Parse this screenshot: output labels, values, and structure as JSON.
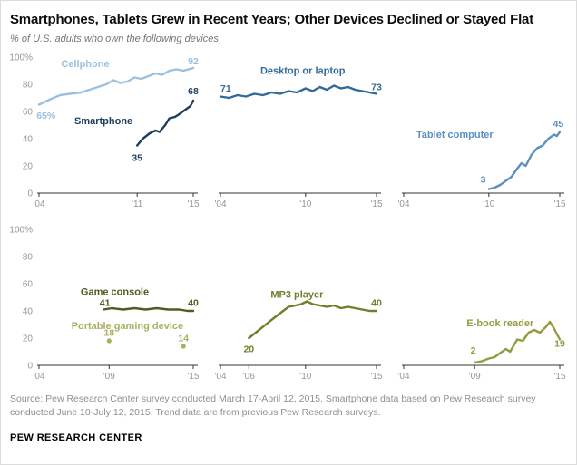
{
  "header": {
    "title": "Smartphones, Tablets Grew in Recent Years; Other Devices Declined or Stayed Flat",
    "subtitle": "% of U.S. adults who own the following devices"
  },
  "footer": {
    "source": "Source:  Pew Research Center survey conducted March 17-April 12, 2015. Smartphone data based on Pew Research survey conducted June 10-July 12, 2015. Trend data are from previous Pew Research surveys.",
    "brand": "PEW RESEARCH CENTER"
  },
  "chart_data": {
    "type": "line",
    "title": "Smartphones, Tablets Grew in Recent Years; Other Devices Declined or Stayed Flat",
    "subtitle": "% of U.S. adults who own the following devices",
    "x_range": [
      2004,
      2015
    ],
    "y_range": [
      0,
      100
    ],
    "y_ticks": [
      100,
      80,
      60,
      40,
      20,
      0
    ],
    "y_tick_labels": [
      "100%",
      "80",
      "60",
      "40",
      "20",
      "0"
    ],
    "axis_color": "#333333",
    "tick_color": "#969696",
    "grid": false,
    "panels": [
      {
        "id": "cellphone-smartphone",
        "show_y_axis": true,
        "x_ticks": [
          {
            "year": 2004,
            "label": "'04"
          },
          {
            "year": 2011,
            "label": "'11"
          },
          {
            "year": 2015,
            "label": "'15"
          }
        ],
        "series": [
          {
            "id": "cellphone",
            "name": "Cellphone",
            "type": "line",
            "color": "#9bc1e0",
            "points": [
              [
                2004,
                65
              ],
              [
                2004.8,
                69
              ],
              [
                2005.5,
                72
              ],
              [
                2006.2,
                73
              ],
              [
                2007,
                74
              ],
              [
                2007.6,
                76
              ],
              [
                2008.2,
                78
              ],
              [
                2008.8,
                80
              ],
              [
                2009.3,
                83
              ],
              [
                2009.8,
                81
              ],
              [
                2010.3,
                82
              ],
              [
                2010.8,
                85
              ],
              [
                2011.3,
                84
              ],
              [
                2011.8,
                86
              ],
              [
                2012.3,
                88
              ],
              [
                2012.8,
                87
              ],
              [
                2013.3,
                90
              ],
              [
                2013.8,
                91
              ],
              [
                2014.3,
                90
              ],
              [
                2015,
                92
              ]
            ]
          },
          {
            "id": "smartphone",
            "name": "Smartphone",
            "type": "line",
            "color": "#1f3e5d",
            "points": [
              [
                2011,
                35
              ],
              [
                2011.4,
                40
              ],
              [
                2011.9,
                44
              ],
              [
                2012.3,
                46
              ],
              [
                2012.6,
                45
              ],
              [
                2013,
                50
              ],
              [
                2013.3,
                55
              ],
              [
                2013.7,
                56
              ],
              [
                2014,
                58
              ],
              [
                2014.4,
                61
              ],
              [
                2014.8,
                64
              ],
              [
                2015,
                68
              ]
            ]
          }
        ],
        "labels": [
          {
            "text": "Cellphone",
            "year": 2007.3,
            "value": 95,
            "color": "#9bc1e0",
            "size": 11
          },
          {
            "text": "65%",
            "year": 2004.5,
            "value": 57,
            "color": "#9bc1e0"
          },
          {
            "text": "92",
            "year": 2015,
            "value": 97,
            "color": "#9bc1e0"
          },
          {
            "text": "Smartphone",
            "year": 2008.6,
            "value": 53,
            "color": "#1f3e5d",
            "size": 11
          },
          {
            "text": "35",
            "year": 2011,
            "value": 26,
            "color": "#1f3e5d"
          },
          {
            "text": "68",
            "year": 2015,
            "value": 75,
            "color": "#1f3e5d"
          }
        ]
      },
      {
        "id": "desktop-laptop",
        "show_y_axis": false,
        "x_ticks": [
          {
            "year": 2004,
            "label": "'04"
          },
          {
            "year": 2010,
            "label": "'10"
          },
          {
            "year": 2015,
            "label": "'15"
          }
        ],
        "series": [
          {
            "id": "desktop-or-laptop",
            "name": "Desktop or laptop",
            "type": "line",
            "color": "#336a98",
            "points": [
              [
                2004,
                71
              ],
              [
                2004.6,
                70
              ],
              [
                2005.2,
                72
              ],
              [
                2005.8,
                71
              ],
              [
                2006.4,
                73
              ],
              [
                2007,
                72
              ],
              [
                2007.6,
                74
              ],
              [
                2008.2,
                73
              ],
              [
                2008.8,
                75
              ],
              [
                2009.4,
                74
              ],
              [
                2010,
                77
              ],
              [
                2010.5,
                75
              ],
              [
                2011,
                78
              ],
              [
                2011.5,
                76
              ],
              [
                2012,
                79
              ],
              [
                2012.5,
                77
              ],
              [
                2013,
                78
              ],
              [
                2013.5,
                76
              ],
              [
                2014,
                75
              ],
              [
                2014.5,
                74
              ],
              [
                2015,
                73
              ]
            ]
          }
        ],
        "labels": [
          {
            "text": "Desktop or laptop",
            "year": 2009.8,
            "value": 90,
            "color": "#336a98",
            "size": 11
          },
          {
            "text": "71",
            "year": 2004,
            "value": 77,
            "color": "#336a98",
            "anchor": "start"
          },
          {
            "text": "73",
            "year": 2015,
            "value": 78,
            "color": "#336a98"
          }
        ]
      },
      {
        "id": "tablet",
        "show_y_axis": false,
        "x_ticks": [
          {
            "year": 2004,
            "label": "'04"
          },
          {
            "year": 2010,
            "label": "'10"
          },
          {
            "year": 2015,
            "label": "'15"
          }
        ],
        "series": [
          {
            "id": "tablet-computer",
            "name": "Tablet computer",
            "type": "line",
            "color": "#5b90c0",
            "points": [
              [
                2010,
                3
              ],
              [
                2010.4,
                4
              ],
              [
                2010.8,
                6
              ],
              [
                2011.2,
                9
              ],
              [
                2011.6,
                12
              ],
              [
                2012,
                18
              ],
              [
                2012.3,
                22
              ],
              [
                2012.6,
                20
              ],
              [
                2013,
                28
              ],
              [
                2013.4,
                33
              ],
              [
                2013.8,
                35
              ],
              [
                2014.2,
                40
              ],
              [
                2014.6,
                43
              ],
              [
                2014.8,
                42
              ],
              [
                2015,
                45
              ]
            ]
          }
        ],
        "labels": [
          {
            "text": "Tablet computer",
            "year": 2007.6,
            "value": 43,
            "color": "#5b90c0",
            "size": 11
          },
          {
            "text": "3",
            "year": 2009.6,
            "value": 10,
            "color": "#5b90c0"
          },
          {
            "text": "45",
            "year": 2014.9,
            "value": 51,
            "color": "#5b90c0"
          }
        ]
      },
      {
        "id": "gaming",
        "show_y_axis": true,
        "x_ticks": [
          {
            "year": 2004,
            "label": "'04"
          },
          {
            "year": 2009,
            "label": "'09"
          },
          {
            "year": 2015,
            "label": "'15"
          }
        ],
        "series": [
          {
            "id": "game-console",
            "name": "Game console",
            "type": "line",
            "color": "#545a21",
            "points": [
              [
                2008.6,
                41
              ],
              [
                2009.2,
                42
              ],
              [
                2010,
                41
              ],
              [
                2010.8,
                42
              ],
              [
                2011.6,
                41
              ],
              [
                2012.4,
                42
              ],
              [
                2013.2,
                41
              ],
              [
                2014,
                41
              ],
              [
                2014.6,
                40
              ],
              [
                2015,
                40
              ]
            ]
          },
          {
            "id": "portable-gaming-device",
            "name": "Portable gaming device",
            "type": "dots",
            "color": "#a9b05f",
            "points": [
              [
                2009,
                18
              ],
              [
                2014.3,
                14
              ]
            ]
          }
        ],
        "labels": [
          {
            "text": "Game console",
            "year": 2009.4,
            "value": 54,
            "color": "#545a21",
            "size": 11
          },
          {
            "text": "41",
            "year": 2008.7,
            "value": 46,
            "color": "#545a21"
          },
          {
            "text": "40",
            "year": 2015,
            "value": 46,
            "color": "#545a21"
          },
          {
            "text": "Portable gaming device",
            "year": 2010.3,
            "value": 29,
            "color": "#a9b05f",
            "size": 11
          },
          {
            "text": "18",
            "year": 2009,
            "value": 24,
            "color": "#a9b05f"
          },
          {
            "text": "14",
            "year": 2014.3,
            "value": 20,
            "color": "#a9b05f"
          }
        ]
      },
      {
        "id": "mp3",
        "show_y_axis": false,
        "x_ticks": [
          {
            "year": 2004,
            "label": "'04"
          },
          {
            "year": 2006,
            "label": "'06"
          },
          {
            "year": 2010,
            "label": "'10"
          },
          {
            "year": 2015,
            "label": "'15"
          }
        ],
        "series": [
          {
            "id": "mp3-player",
            "name": "MP3 player",
            "type": "line",
            "color": "#757c2b",
            "points": [
              [
                2006,
                20
              ],
              [
                2006.6,
                25
              ],
              [
                2007.2,
                30
              ],
              [
                2007.8,
                35
              ],
              [
                2008.3,
                39
              ],
              [
                2008.8,
                43
              ],
              [
                2009.3,
                44
              ],
              [
                2009.7,
                45
              ],
              [
                2010.1,
                47
              ],
              [
                2010.5,
                45
              ],
              [
                2011,
                44
              ],
              [
                2011.5,
                43
              ],
              [
                2012,
                44
              ],
              [
                2012.5,
                42
              ],
              [
                2013,
                43
              ],
              [
                2013.5,
                42
              ],
              [
                2014,
                41
              ],
              [
                2014.5,
                40
              ],
              [
                2015,
                40
              ]
            ]
          }
        ],
        "labels": [
          {
            "text": "MP3 player",
            "year": 2009.4,
            "value": 52,
            "color": "#757c2b",
            "size": 11
          },
          {
            "text": "20",
            "year": 2006,
            "value": 12,
            "color": "#757c2b"
          },
          {
            "text": "40",
            "year": 2015,
            "value": 46,
            "color": "#757c2b"
          }
        ]
      },
      {
        "id": "ebook",
        "show_y_axis": false,
        "x_ticks": [
          {
            "year": 2004,
            "label": "'04"
          },
          {
            "year": 2009,
            "label": "'09"
          },
          {
            "year": 2015,
            "label": "'15"
          }
        ],
        "series": [
          {
            "id": "e-book-reader",
            "name": "E-book reader",
            "type": "line",
            "color": "#939b3e",
            "points": [
              [
                2009,
                2
              ],
              [
                2009.5,
                3
              ],
              [
                2010,
                5
              ],
              [
                2010.4,
                6
              ],
              [
                2010.8,
                9
              ],
              [
                2011.2,
                12
              ],
              [
                2011.5,
                10
              ],
              [
                2012,
                19
              ],
              [
                2012.4,
                18
              ],
              [
                2012.8,
                24
              ],
              [
                2013.2,
                26
              ],
              [
                2013.6,
                24
              ],
              [
                2014,
                28
              ],
              [
                2014.3,
                32
              ],
              [
                2014.6,
                27
              ],
              [
                2015,
                19
              ]
            ]
          }
        ],
        "labels": [
          {
            "text": "E-book reader",
            "year": 2010.8,
            "value": 31,
            "color": "#939b3e",
            "size": 11
          },
          {
            "text": "2",
            "year": 2008.9,
            "value": 11,
            "color": "#939b3e"
          },
          {
            "text": "19",
            "year": 2015,
            "value": 16,
            "color": "#939b3e"
          }
        ]
      }
    ]
  }
}
